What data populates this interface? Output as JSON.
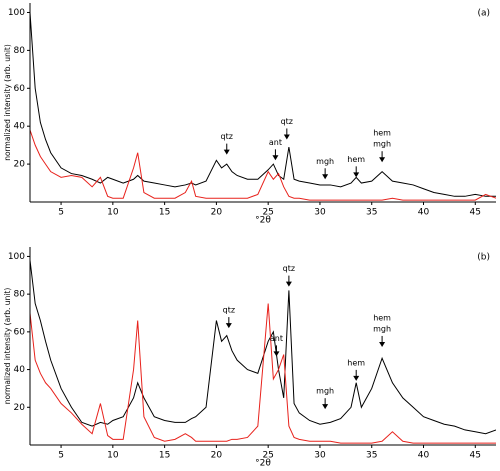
{
  "chart_data": [
    {
      "type": "line",
      "panel_label": "(a)",
      "xlabel": "°2θ",
      "ylabel": "normalized intensity (arb. unit)",
      "xlim": [
        2,
        47
      ],
      "ylim": [
        0,
        105
      ],
      "xticks": [
        5,
        10,
        15,
        20,
        25,
        30,
        35,
        40,
        45
      ],
      "yticks": [
        20,
        40,
        60,
        80,
        100
      ],
      "x": [
        2,
        2.5,
        3,
        3.5,
        4,
        5,
        6,
        7,
        8,
        8.8,
        9.5,
        10,
        11,
        12,
        12.4,
        13,
        14,
        15,
        16,
        17,
        17.6,
        18,
        19,
        20,
        20.5,
        21,
        21.5,
        22,
        23,
        24,
        25,
        25.5,
        26,
        26.5,
        27,
        27.5,
        28,
        29,
        30,
        31,
        32,
        33,
        33.5,
        34,
        35,
        36,
        37,
        38,
        39,
        40,
        41,
        42,
        43,
        44,
        45,
        46,
        47
      ],
      "series": [
        {
          "color": "#000000",
          "values": [
            100,
            60,
            42,
            33,
            26,
            18,
            15,
            14,
            12,
            10,
            13,
            12,
            10,
            12,
            14,
            11,
            10,
            9,
            8,
            9,
            10,
            9,
            11,
            22,
            18,
            20,
            16,
            14,
            12,
            12,
            17,
            20,
            14,
            12,
            29,
            12,
            11,
            10,
            9,
            9,
            8,
            10,
            13,
            10,
            11,
            16,
            11,
            10,
            9,
            7,
            5,
            4,
            3,
            3,
            4,
            3,
            3
          ]
        },
        {
          "color": "#e8221c",
          "values": [
            38,
            30,
            24,
            20,
            16,
            13,
            14,
            13,
            8,
            13,
            3,
            2,
            2,
            18,
            26,
            5,
            2,
            2,
            2,
            5,
            11,
            3,
            2,
            2,
            2,
            2,
            2,
            2,
            2,
            4,
            16,
            12,
            15,
            8,
            3,
            2,
            2,
            1,
            1,
            1,
            1,
            1,
            1,
            1,
            1,
            1,
            2,
            1,
            1,
            1,
            1,
            1,
            1,
            1,
            1,
            4,
            2
          ]
        }
      ],
      "annotations": [
        {
          "text": [
            "qtz"
          ],
          "x": 21,
          "y": 25
        },
        {
          "text": [
            "ant"
          ],
          "x": 25.7,
          "y": 22
        },
        {
          "text": [
            "qtz"
          ],
          "x": 26.8,
          "y": 33
        },
        {
          "text": [
            "mgh"
          ],
          "x": 30.5,
          "y": 12
        },
        {
          "text": [
            "hem"
          ],
          "x": 33.5,
          "y": 13
        },
        {
          "text": [
            "hem",
            "mgh"
          ],
          "x": 36,
          "y": 21
        }
      ]
    },
    {
      "type": "line",
      "panel_label": "(b)",
      "xlabel": "°2θ",
      "ylabel": "normalized intensity (arb. unit)",
      "xlim": [
        2,
        47
      ],
      "ylim": [
        0,
        105
      ],
      "xticks": [
        5,
        10,
        15,
        20,
        25,
        30,
        35,
        40,
        45
      ],
      "yticks": [
        20,
        40,
        60,
        80,
        100
      ],
      "x": [
        2,
        2.5,
        3,
        3.5,
        4,
        5,
        6,
        7,
        8,
        8.8,
        9.5,
        10,
        11,
        12,
        12.4,
        13,
        14,
        15,
        16,
        17,
        17.6,
        18,
        19,
        20,
        20.5,
        21,
        21.5,
        22,
        23,
        24,
        25,
        25.5,
        26,
        26.5,
        27,
        27.5,
        28,
        29,
        30,
        31,
        32,
        33,
        33.5,
        34,
        35,
        36,
        37,
        38,
        39,
        40,
        41,
        42,
        43,
        44,
        45,
        46,
        47
      ],
      "series": [
        {
          "color": "#000000",
          "values": [
            98,
            75,
            66,
            55,
            45,
            30,
            20,
            12,
            10,
            12,
            11,
            13,
            15,
            25,
            33,
            25,
            15,
            13,
            12,
            12,
            14,
            15,
            20,
            66,
            55,
            58,
            50,
            45,
            40,
            38,
            55,
            60,
            40,
            25,
            82,
            22,
            17,
            13,
            11,
            12,
            14,
            20,
            33,
            20,
            30,
            46,
            33,
            25,
            20,
            15,
            13,
            11,
            10,
            8,
            7,
            6,
            8
          ]
        },
        {
          "color": "#e8221c",
          "values": [
            70,
            45,
            38,
            33,
            30,
            22,
            17,
            11,
            6,
            22,
            5,
            3,
            3,
            40,
            66,
            15,
            4,
            2,
            3,
            6,
            4,
            2,
            2,
            2,
            2,
            2,
            3,
            3,
            4,
            10,
            75,
            35,
            40,
            48,
            10,
            4,
            3,
            2,
            2,
            2,
            1,
            1,
            1,
            1,
            1,
            2,
            7,
            2,
            1,
            1,
            1,
            1,
            1,
            1,
            1,
            1,
            1
          ]
        }
      ],
      "annotations": [
        {
          "text": [
            "qtz"
          ],
          "x": 21.2,
          "y": 62
        },
        {
          "text": [
            "ant"
          ],
          "x": 25.8,
          "y": 47
        },
        {
          "text": [
            "qtz"
          ],
          "x": 27,
          "y": 84
        },
        {
          "text": [
            "mgh"
          ],
          "x": 30.5,
          "y": 19
        },
        {
          "text": [
            "hem"
          ],
          "x": 33.5,
          "y": 34
        },
        {
          "text": [
            "hem",
            "mgh"
          ],
          "x": 36,
          "y": 52
        }
      ]
    }
  ]
}
